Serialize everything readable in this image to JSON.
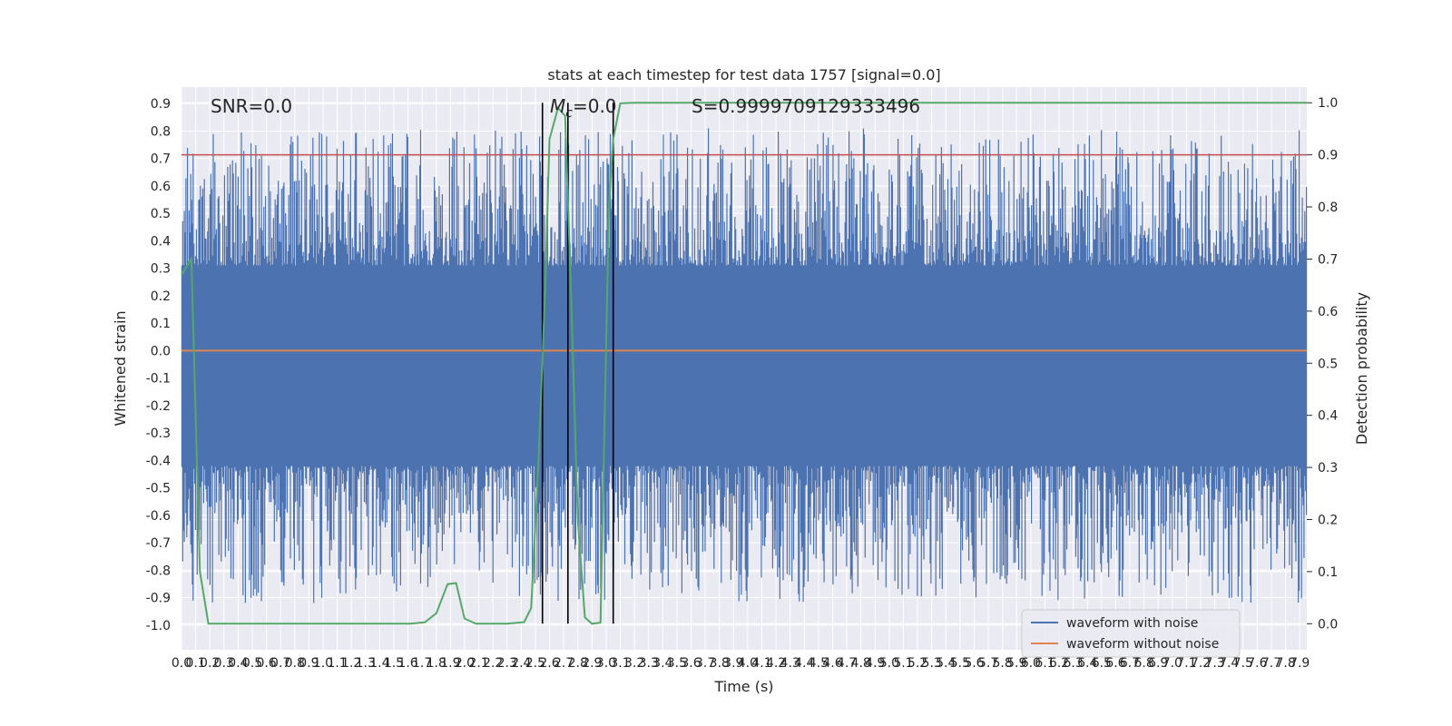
{
  "chart_data": {
    "type": "line",
    "title": "stats at each timestep for test data 1757 [signal=0.0]",
    "xlabel": "Time (s)",
    "ylabel_left": "Whitened strain",
    "ylabel_right": "Detection probability",
    "xlim": [
      0.0,
      7.95
    ],
    "ylim_left": [
      -1.09,
      0.96
    ],
    "ylim_right": [
      -0.05,
      1.03
    ],
    "grid": true,
    "legend_position": "lower-right",
    "annotations": {
      "snr": "SNR=0.0",
      "mc_symbol": "M",
      "mc_sub": "c",
      "mc_value": "=0.0",
      "score": "S=0.9999709129333496"
    },
    "threshold_right": 0.9,
    "threshold_color": "#c44e52",
    "vertical_lines_x": [
      2.55,
      2.73,
      3.05
    ],
    "x_ticks": [
      "0.0",
      "0.1",
      "0.2",
      "0.3",
      "0.4",
      "0.5",
      "0.6",
      "0.7",
      "0.8",
      "0.9",
      "1.0",
      "1.1",
      "1.2",
      "1.3",
      "1.4",
      "1.5",
      "1.6",
      "1.7",
      "1.8",
      "1.9",
      "2.0",
      "2.1",
      "2.2",
      "2.3",
      "2.4",
      "2.5",
      "2.6",
      "2.7",
      "2.8",
      "2.9",
      "3.0",
      "3.1",
      "3.2",
      "3.3",
      "3.4",
      "3.5",
      "3.6",
      "3.7",
      "3.8",
      "3.9",
      "4.0",
      "4.1",
      "4.2",
      "4.3",
      "4.4",
      "4.5",
      "4.6",
      "4.7",
      "4.8",
      "4.9",
      "5.0",
      "5.1",
      "5.2",
      "5.3",
      "5.4",
      "5.5",
      "5.6",
      "5.7",
      "5.8",
      "5.9",
      "6.0",
      "6.1",
      "6.2",
      "6.3",
      "6.4",
      "6.5",
      "6.6",
      "6.7",
      "6.8",
      "6.9",
      "7.0",
      "7.1",
      "7.2",
      "7.3",
      "7.4",
      "7.5",
      "7.6",
      "7.7",
      "7.8",
      "7.9"
    ],
    "y_ticks_left": [
      "0.9",
      "0.8",
      "0.7",
      "0.6",
      "0.5",
      "0.4",
      "0.3",
      "0.2",
      "0.1",
      "0.0",
      "-0.1",
      "-0.2",
      "-0.3",
      "-0.4",
      "-0.5",
      "-0.6",
      "-0.7",
      "-0.8",
      "-0.9",
      "-1.0"
    ],
    "y_ticks_right": [
      "1.0",
      "0.9",
      "0.8",
      "0.7",
      "0.6",
      "0.5",
      "0.4",
      "0.3",
      "0.2",
      "0.1",
      "0.0"
    ],
    "series": [
      {
        "name": "waveform with noise",
        "color": "#4c72b0",
        "noise_band": [
          -0.42,
          0.31
        ],
        "x_range": [
          0.0,
          7.95
        ]
      },
      {
        "name": "waveform without noise",
        "color": "#dd8452",
        "y": [
          0.0,
          0.0
        ],
        "x": [
          0.0,
          7.95
        ]
      },
      {
        "color": "#55a868",
        "axis": "right",
        "x": [
          0.0,
          0.07,
          0.13,
          0.19,
          0.32,
          0.6,
          1.0,
          1.4,
          1.62,
          1.72,
          1.8,
          1.88,
          1.94,
          2.0,
          2.08,
          2.15,
          2.3,
          2.42,
          2.47,
          2.52,
          2.57,
          2.6,
          2.66,
          2.71,
          2.75,
          2.8,
          2.85,
          2.9,
          2.96,
          3.02,
          3.05,
          3.1,
          3.2,
          3.5,
          4.5,
          6.0,
          7.95
        ],
        "y": [
          0.67,
          0.7,
          0.1,
          0.0,
          0.0,
          0.0,
          0.0,
          0.0,
          0.0,
          0.003,
          0.02,
          0.076,
          0.078,
          0.01,
          0.0,
          0.0,
          0.0,
          0.003,
          0.03,
          0.3,
          0.65,
          0.93,
          0.99,
          0.975,
          0.65,
          0.2,
          0.012,
          0.0,
          0.002,
          0.8,
          0.93,
          0.999,
          1.0,
          1.0,
          1.0,
          1.0,
          1.0
        ]
      }
    ]
  }
}
